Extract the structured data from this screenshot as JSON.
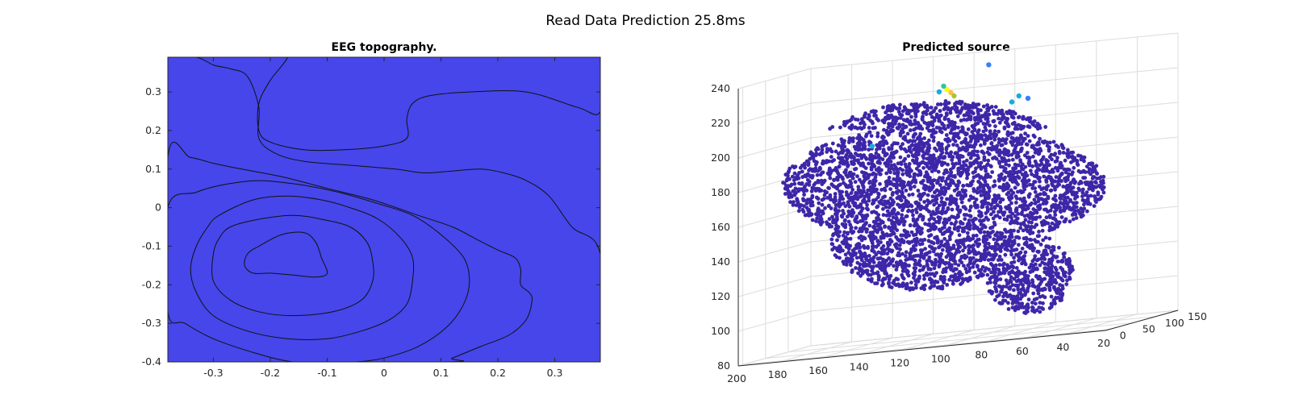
{
  "figure": {
    "title": "Read Data Prediction 25.8ms"
  },
  "chart_data": [
    {
      "type": "contour",
      "title": "EEG topography.",
      "xlabel": "",
      "ylabel": "",
      "xlim": [
        -0.38,
        0.38
      ],
      "ylim": [
        -0.4,
        0.39
      ],
      "xticks": [
        -0.3,
        -0.2,
        -0.1,
        0,
        0.1,
        0.2,
        0.3
      ],
      "yticks": [
        -0.4,
        -0.3,
        -0.2,
        -0.1,
        0,
        0.1,
        0.2,
        0.3
      ],
      "xtick_labels": [
        "-0.3",
        "-0.2",
        "-0.1",
        "0",
        "0.1",
        "0.2",
        "0.3"
      ],
      "ytick_labels": [
        "-0.4",
        "-0.3",
        "-0.2",
        "-0.1",
        "0",
        "0.1",
        "0.2",
        "0.3"
      ],
      "levels": [
        {
          "level": 1,
          "color": "#3e26a8"
        },
        {
          "level": 2,
          "color": "#4646ea"
        },
        {
          "level": 3,
          "color": "#3580fe"
        },
        {
          "level": 4,
          "color": "#17acdd"
        },
        {
          "level": 5,
          "color": "#2ec4a0"
        },
        {
          "level": 6,
          "color": "#a8c53a"
        },
        {
          "level": 7,
          "color": "#fec03c"
        },
        {
          "level": 8,
          "color": "#f9fb0e"
        }
      ],
      "regions": [
        {
          "level": 1,
          "color": "#3e26a8",
          "points": [
            [
              -0.2,
              0.39
            ],
            [
              0.38,
              0.39
            ],
            [
              0.38,
              0.25
            ],
            [
              0.34,
              0.26
            ],
            [
              0.25,
              0.3
            ],
            [
              0.15,
              0.3
            ],
            [
              0.08,
              0.29
            ],
            [
              0.05,
              0.27
            ],
            [
              0.04,
              0.23
            ],
            [
              0.04,
              0.18
            ],
            [
              0.0,
              0.16
            ],
            [
              -0.07,
              0.15
            ],
            [
              -0.14,
              0.15
            ],
            [
              -0.2,
              0.17
            ],
            [
              -0.22,
              0.2
            ],
            [
              -0.22,
              0.27
            ],
            [
              -0.2,
              0.33
            ],
            [
              -0.17,
              0.39
            ]
          ]
        },
        {
          "level": 3,
          "color": "#3580fe",
          "points": [
            [
              -0.38,
              0.39
            ],
            [
              -0.33,
              0.39
            ],
            [
              -0.3,
              0.37
            ],
            [
              -0.27,
              0.36
            ],
            [
              -0.24,
              0.34
            ],
            [
              -0.22,
              0.26
            ],
            [
              -0.22,
              0.18
            ],
            [
              -0.19,
              0.14
            ],
            [
              -0.14,
              0.12
            ],
            [
              -0.06,
              0.11
            ],
            [
              0.02,
              0.1
            ],
            [
              0.07,
              0.09
            ],
            [
              0.12,
              0.095
            ],
            [
              0.17,
              0.1
            ],
            [
              0.21,
              0.09
            ],
            [
              0.25,
              0.07
            ],
            [
              0.29,
              0.03
            ],
            [
              0.33,
              -0.05
            ],
            [
              0.38,
              -0.12
            ],
            [
              0.38,
              -0.4
            ],
            [
              -0.38,
              -0.4
            ]
          ]
        },
        {
          "level": 4,
          "color": "#17acdd",
          "points": [
            [
              -0.38,
              0.13
            ],
            [
              -0.34,
              0.13
            ],
            [
              -0.3,
              0.115
            ],
            [
              -0.25,
              0.1
            ],
            [
              -0.18,
              0.08
            ],
            [
              -0.1,
              0.05
            ],
            [
              -0.02,
              0.02
            ],
            [
              0.06,
              -0.02
            ],
            [
              0.12,
              -0.05
            ],
            [
              0.16,
              -0.08
            ],
            [
              0.2,
              -0.11
            ],
            [
              0.23,
              -0.13
            ],
            [
              0.24,
              -0.16
            ],
            [
              0.24,
              -0.2
            ],
            [
              0.255,
              -0.22
            ],
            [
              0.26,
              -0.24
            ],
            [
              0.25,
              -0.29
            ],
            [
              0.22,
              -0.33
            ],
            [
              0.17,
              -0.36
            ],
            [
              0.12,
              -0.39
            ],
            [
              0.1,
              -0.4
            ],
            [
              -0.38,
              -0.4
            ]
          ]
        },
        {
          "level": 5,
          "color": "#2ec4a0",
          "points": [
            [
              -0.38,
              0.0
            ],
            [
              -0.33,
              0.04
            ],
            [
              -0.28,
              0.06
            ],
            [
              -0.22,
              0.07
            ],
            [
              -0.15,
              0.06
            ],
            [
              -0.08,
              0.04
            ],
            [
              -0.01,
              0.01
            ],
            [
              0.05,
              -0.02
            ],
            [
              0.1,
              -0.07
            ],
            [
              0.14,
              -0.13
            ],
            [
              0.15,
              -0.19
            ],
            [
              0.14,
              -0.25
            ],
            [
              0.11,
              -0.31
            ],
            [
              0.06,
              -0.36
            ],
            [
              0.0,
              -0.39
            ],
            [
              -0.05,
              -0.4
            ],
            [
              -0.1,
              -0.4
            ],
            [
              -0.16,
              -0.4
            ],
            [
              -0.22,
              -0.38
            ],
            [
              -0.3,
              -0.34
            ],
            [
              -0.35,
              -0.3
            ],
            [
              -0.38,
              -0.27
            ]
          ]
        },
        {
          "level": 6,
          "color": "#a8c53a",
          "points": [
            [
              -0.29,
              -0.02
            ],
            [
              -0.23,
              0.02
            ],
            [
              -0.17,
              0.03
            ],
            [
              -0.11,
              0.02
            ],
            [
              -0.06,
              0.0
            ],
            [
              -0.01,
              -0.03
            ],
            [
              0.03,
              -0.08
            ],
            [
              0.05,
              -0.13
            ],
            [
              0.05,
              -0.19
            ],
            [
              0.04,
              -0.25
            ],
            [
              0.01,
              -0.29
            ],
            [
              -0.04,
              -0.32
            ],
            [
              -0.1,
              -0.34
            ],
            [
              -0.17,
              -0.34
            ],
            [
              -0.24,
              -0.32
            ],
            [
              -0.3,
              -0.28
            ],
            [
              -0.33,
              -0.22
            ],
            [
              -0.34,
              -0.16
            ],
            [
              -0.33,
              -0.1
            ],
            [
              -0.31,
              -0.05
            ]
          ]
        },
        {
          "level": 7,
          "color": "#fec03c",
          "points": [
            [
              -0.27,
              -0.05
            ],
            [
              -0.22,
              -0.03
            ],
            [
              -0.16,
              -0.02
            ],
            [
              -0.11,
              -0.03
            ],
            [
              -0.06,
              -0.05
            ],
            [
              -0.03,
              -0.09
            ],
            [
              -0.02,
              -0.14
            ],
            [
              -0.02,
              -0.19
            ],
            [
              -0.04,
              -0.24
            ],
            [
              -0.09,
              -0.27
            ],
            [
              -0.16,
              -0.28
            ],
            [
              -0.22,
              -0.27
            ],
            [
              -0.27,
              -0.24
            ],
            [
              -0.3,
              -0.19
            ],
            [
              -0.3,
              -0.12
            ],
            [
              -0.29,
              -0.08
            ]
          ]
        },
        {
          "level": 8,
          "color": "#f9fb0e",
          "points": [
            [
              -0.22,
              -0.1
            ],
            [
              -0.18,
              -0.07
            ],
            [
              -0.14,
              -0.065
            ],
            [
              -0.12,
              -0.09
            ],
            [
              -0.11,
              -0.13
            ],
            [
              -0.1,
              -0.17
            ],
            [
              -0.12,
              -0.18
            ],
            [
              -0.16,
              -0.175
            ],
            [
              -0.2,
              -0.17
            ],
            [
              -0.23,
              -0.17
            ],
            [
              -0.245,
              -0.15
            ],
            [
              -0.24,
              -0.12
            ]
          ]
        }
      ]
    },
    {
      "type": "scatter3d",
      "title": "Predicted source",
      "xlabel": "",
      "ylabel": "",
      "zlabel": "",
      "xlim": [
        20,
        200
      ],
      "ylim": [
        -10,
        150
      ],
      "zlim": [
        80,
        240
      ],
      "xticks": [
        20,
        40,
        60,
        80,
        100,
        120,
        140,
        160,
        180,
        200
      ],
      "xtick_labels": [
        "20",
        "40",
        "60",
        "80",
        "100",
        "120",
        "140",
        "160",
        "180",
        "200"
      ],
      "yticks": [
        0,
        50,
        100,
        150
      ],
      "ytick_labels": [
        "0",
        "50",
        "100",
        "150"
      ],
      "zticks": [
        80,
        100,
        120,
        140,
        160,
        180,
        200,
        220,
        240
      ],
      "ztick_labels": [
        "80",
        "100",
        "120",
        "140",
        "160",
        "180",
        "200",
        "220",
        "240"
      ],
      "grid": true,
      "base_color": "#3e26a8",
      "point_cloud": "brain-shaped cloud of source points, nearly all at minimum amplitude",
      "hotspots": [
        {
          "x": 116,
          "y": 72,
          "z": 224,
          "color": "#f9fb0e"
        },
        {
          "x": 114,
          "y": 72,
          "z": 222,
          "color": "#fec03c"
        },
        {
          "x": 118,
          "y": 74,
          "z": 226,
          "color": "#2ec4a0"
        },
        {
          "x": 112,
          "y": 70,
          "z": 220,
          "color": "#a8c53a"
        },
        {
          "x": 120,
          "y": 73,
          "z": 223,
          "color": "#17acdd"
        },
        {
          "x": 82,
          "y": 78,
          "z": 216,
          "color": "#17acdd"
        },
        {
          "x": 78,
          "y": 80,
          "z": 214,
          "color": "#3580fe"
        },
        {
          "x": 85,
          "y": 76,
          "z": 213,
          "color": "#17acdd"
        },
        {
          "x": 150,
          "y": 60,
          "z": 196,
          "color": "#17acdd"
        },
        {
          "x": 95,
          "y": 70,
          "z": 236,
          "color": "#3580fe"
        }
      ]
    }
  ]
}
